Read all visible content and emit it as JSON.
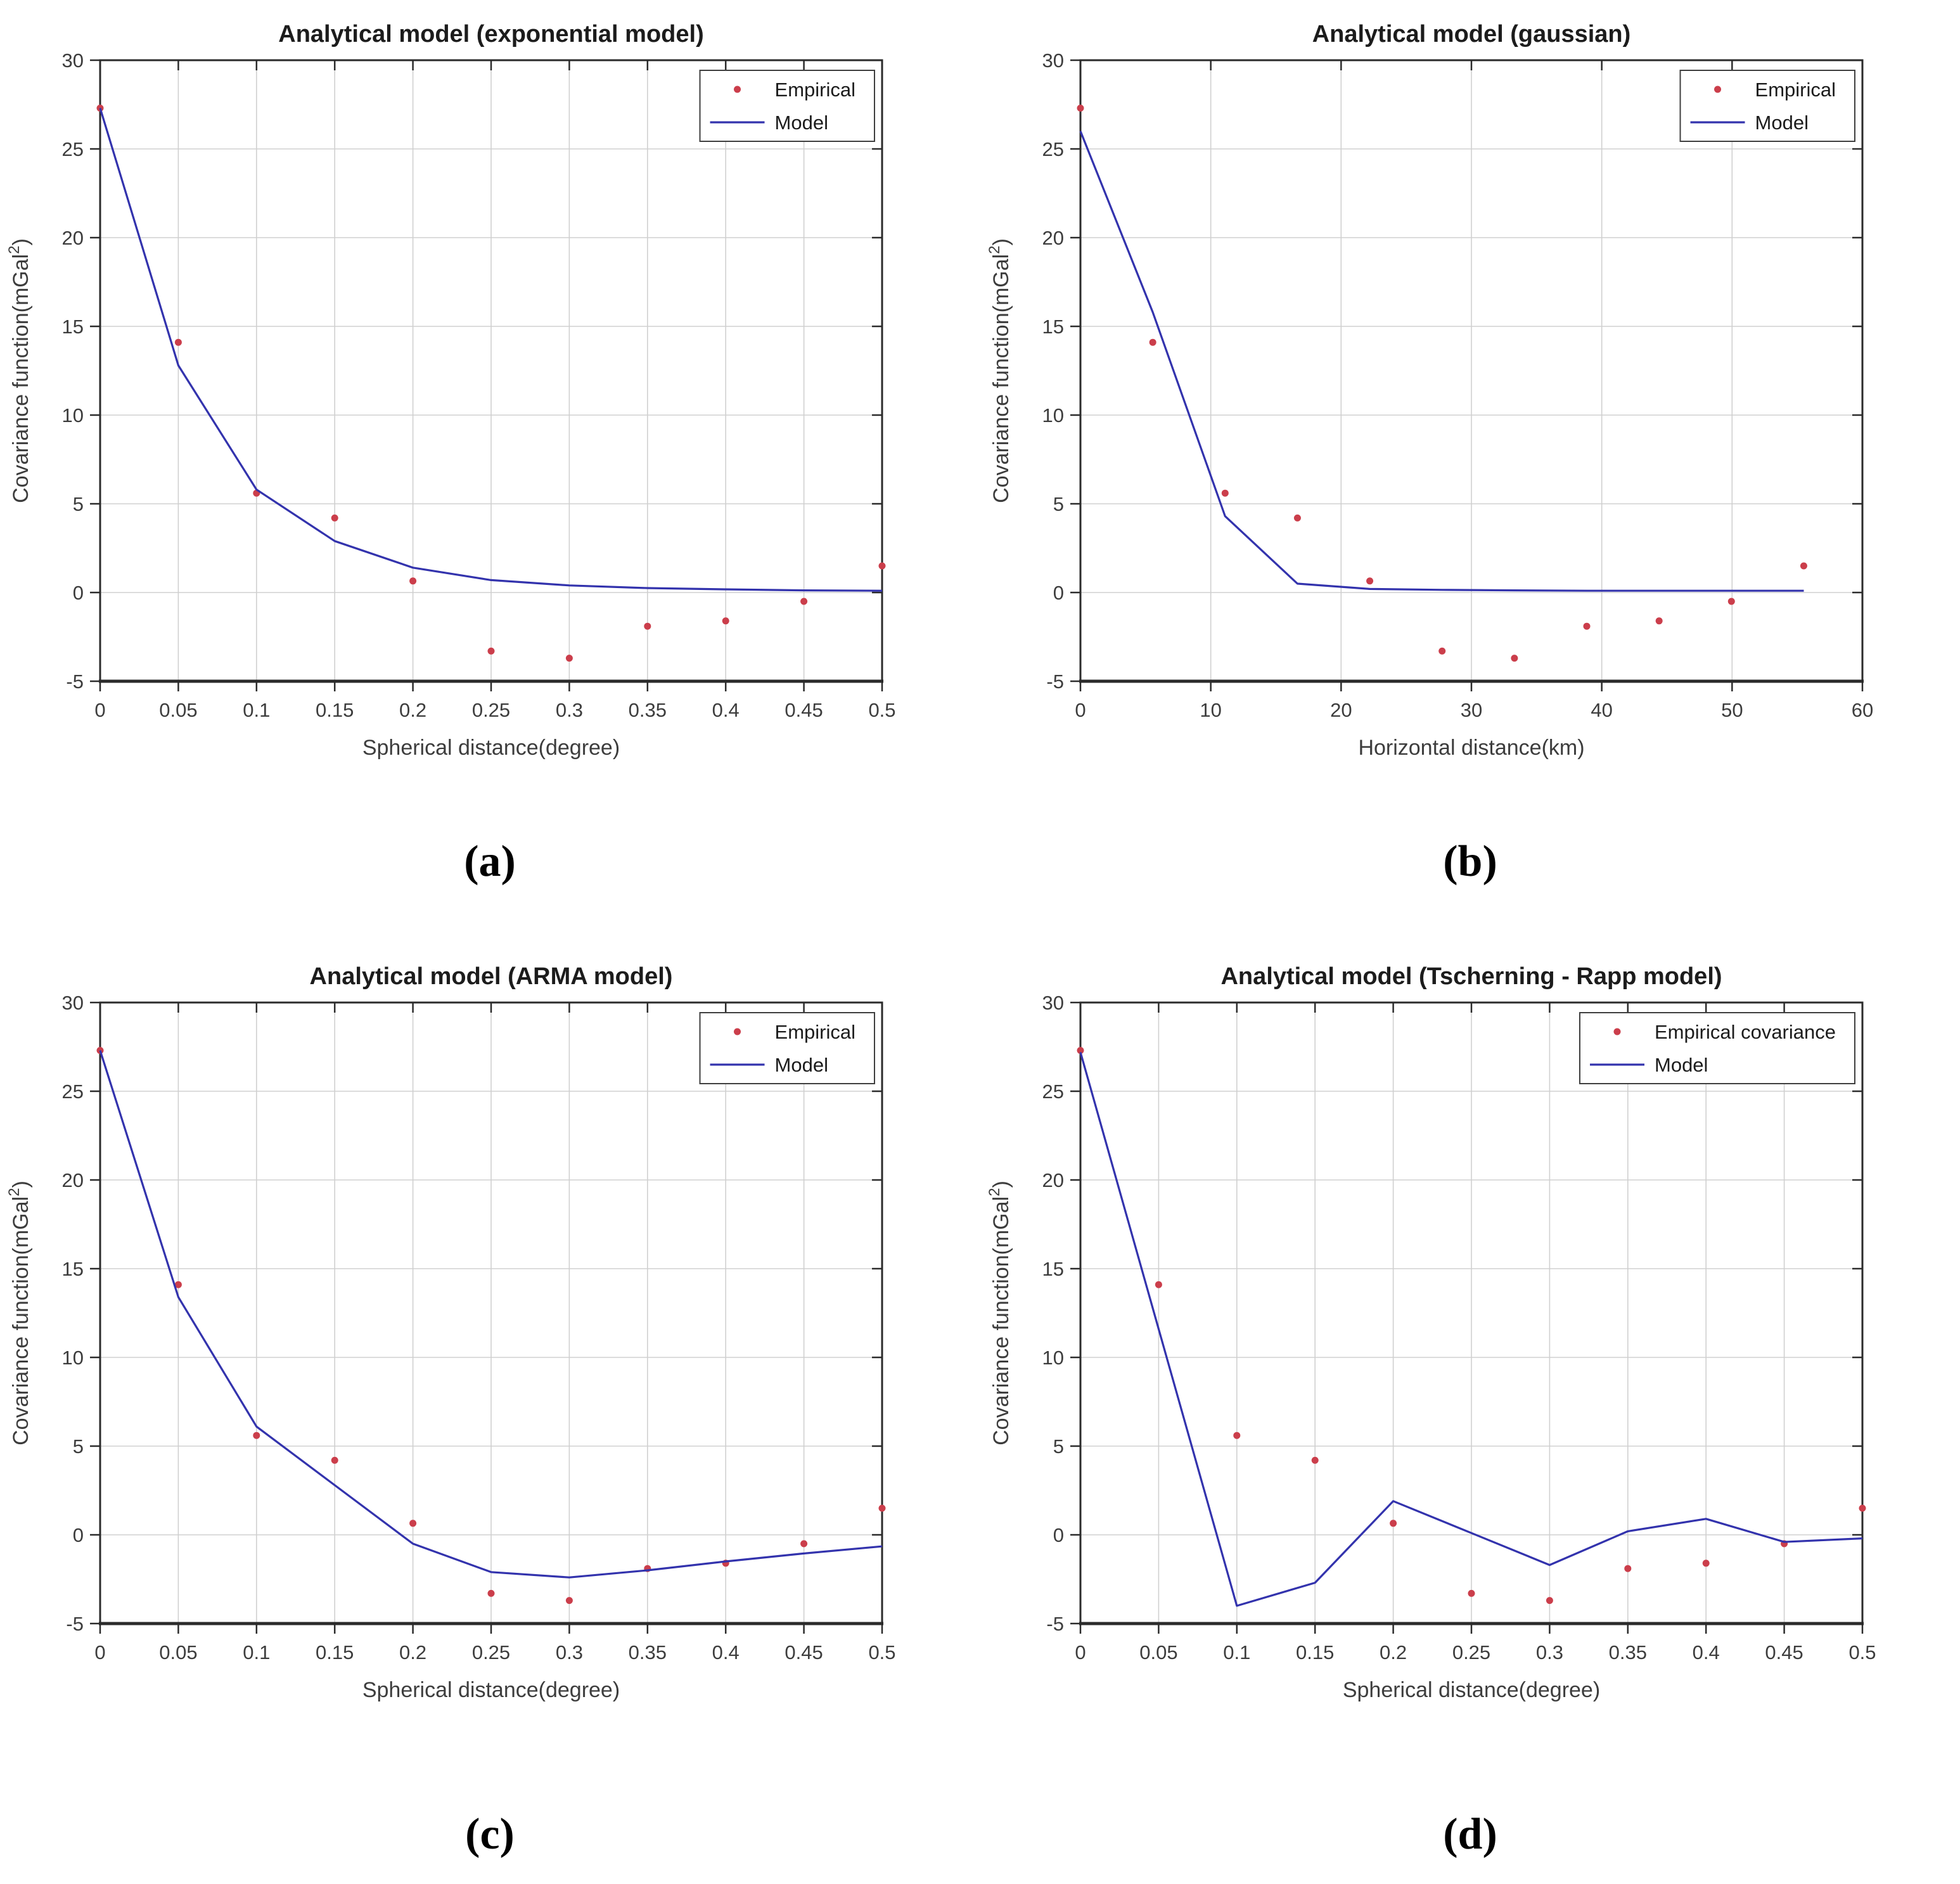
{
  "figure": {
    "background": "#ffffff"
  },
  "colors": {
    "empirical": "#cb3e4b",
    "model": "#3333ad",
    "grid": "#d0d0d0",
    "axis": "#2b2b2b",
    "tick_label": "#3d3d3d",
    "title": "#1c1c1c",
    "legend_border": "#3f3f3f",
    "background": "#ffffff"
  },
  "captions": {
    "a": "(a)",
    "b": "(b)",
    "c": "(c)",
    "d": "(d)"
  },
  "chart_data": [
    {
      "id": "a",
      "type": "line",
      "title": "Analytical model (exponential model)",
      "xlabel": "Spherical distance(degree)",
      "ylabel": "Covariance function(mGal²)",
      "xlim": [
        0,
        0.5
      ],
      "ylim": [
        -5,
        30
      ],
      "xticks": [
        0,
        0.05,
        0.1,
        0.15,
        0.2,
        0.25,
        0.3,
        0.35,
        0.4,
        0.45,
        0.5
      ],
      "xtick_labels": [
        "0",
        "0.05",
        "0.1",
        "0.15",
        "0.2",
        "0.25",
        "0.3",
        "0.35",
        "0.4",
        "0.45",
        "0.5"
      ],
      "yticks": [
        -5,
        0,
        5,
        10,
        15,
        20,
        25,
        30
      ],
      "ytick_labels": [
        "-5",
        "0",
        "5",
        "10",
        "15",
        "20",
        "25",
        "30"
      ],
      "grid": true,
      "legend": {
        "position": "top-right",
        "entries": [
          {
            "label": "Empirical",
            "marker": "dot",
            "color": "empirical"
          },
          {
            "label": "Model",
            "marker": "line",
            "color": "model"
          }
        ]
      },
      "series": [
        {
          "name": "Empirical",
          "type": "scatter",
          "color": "empirical",
          "x": [
            0,
            0.05,
            0.1,
            0.15,
            0.2,
            0.25,
            0.3,
            0.35,
            0.4,
            0.45,
            0.5
          ],
          "y": [
            27.3,
            14.1,
            5.6,
            4.2,
            0.65,
            -3.3,
            -3.7,
            -1.9,
            -1.6,
            -0.5,
            1.5
          ]
        },
        {
          "name": "Model",
          "type": "line",
          "color": "model",
          "x": [
            0,
            0.05,
            0.1,
            0.15,
            0.2,
            0.25,
            0.3,
            0.35,
            0.4,
            0.45,
            0.5
          ],
          "y": [
            27.3,
            12.8,
            5.8,
            2.9,
            1.4,
            0.7,
            0.4,
            0.25,
            0.18,
            0.12,
            0.1
          ]
        }
      ]
    },
    {
      "id": "b",
      "type": "line",
      "title": "Analytical model (gaussian)",
      "xlabel": "Horizontal distance(km)",
      "ylabel": "Covariance function(mGal²)",
      "xlim": [
        0,
        60
      ],
      "ylim": [
        -5,
        30
      ],
      "xticks": [
        0,
        10,
        20,
        30,
        40,
        50,
        60
      ],
      "xtick_labels": [
        "0",
        "10",
        "20",
        "30",
        "40",
        "50",
        "60"
      ],
      "yticks": [
        -5,
        0,
        5,
        10,
        15,
        20,
        25,
        30
      ],
      "ytick_labels": [
        "-5",
        "0",
        "5",
        "10",
        "15",
        "20",
        "25",
        "30"
      ],
      "grid": true,
      "legend": {
        "position": "top-right",
        "entries": [
          {
            "label": "Empirical",
            "marker": "dot",
            "color": "empirical"
          },
          {
            "label": "Model",
            "marker": "line",
            "color": "model"
          }
        ]
      },
      "series": [
        {
          "name": "Empirical",
          "type": "scatter",
          "color": "empirical",
          "x": [
            0,
            5.55,
            11.1,
            16.65,
            22.2,
            27.75,
            33.3,
            38.85,
            44.4,
            49.95,
            55.5
          ],
          "y": [
            27.3,
            14.1,
            5.6,
            4.2,
            0.65,
            -3.3,
            -3.7,
            -1.9,
            -1.6,
            -0.5,
            1.5
          ]
        },
        {
          "name": "Model",
          "type": "line",
          "color": "model",
          "x": [
            0,
            5.55,
            11.1,
            16.65,
            22.2,
            27.75,
            33.3,
            38.85,
            44.4,
            49.95,
            55.5
          ],
          "y": [
            26.0,
            15.8,
            4.3,
            0.5,
            0.2,
            0.15,
            0.12,
            0.1,
            0.1,
            0.1,
            0.1
          ]
        }
      ]
    },
    {
      "id": "c",
      "type": "line",
      "title": "Analytical model (ARMA model)",
      "xlabel": "Spherical distance(degree)",
      "ylabel": "Covariance function(mGal²)",
      "xlim": [
        0,
        0.5
      ],
      "ylim": [
        -5,
        30
      ],
      "xticks": [
        0,
        0.05,
        0.1,
        0.15,
        0.2,
        0.25,
        0.3,
        0.35,
        0.4,
        0.45,
        0.5
      ],
      "xtick_labels": [
        "0",
        "0.05",
        "0.1",
        "0.15",
        "0.2",
        "0.25",
        "0.3",
        "0.35",
        "0.4",
        "0.45",
        "0.5"
      ],
      "yticks": [
        -5,
        0,
        5,
        10,
        15,
        20,
        25,
        30
      ],
      "ytick_labels": [
        "-5",
        "0",
        "5",
        "10",
        "15",
        "20",
        "25",
        "30"
      ],
      "grid": true,
      "legend": {
        "position": "top-right",
        "entries": [
          {
            "label": "Empirical",
            "marker": "dot",
            "color": "empirical"
          },
          {
            "label": "Model",
            "marker": "line",
            "color": "model"
          }
        ]
      },
      "series": [
        {
          "name": "Empirical",
          "type": "scatter",
          "color": "empirical",
          "x": [
            0,
            0.05,
            0.1,
            0.15,
            0.2,
            0.25,
            0.3,
            0.35,
            0.4,
            0.45,
            0.5
          ],
          "y": [
            27.3,
            14.1,
            5.6,
            4.2,
            0.65,
            -3.3,
            -3.7,
            -1.9,
            -1.6,
            -0.5,
            1.5
          ]
        },
        {
          "name": "Model",
          "type": "line",
          "color": "model",
          "x": [
            0,
            0.05,
            0.1,
            0.15,
            0.2,
            0.25,
            0.3,
            0.35,
            0.4,
            0.45,
            0.5
          ],
          "y": [
            27.3,
            13.4,
            6.1,
            2.8,
            -0.5,
            -2.1,
            -2.4,
            -2.0,
            -1.5,
            -1.05,
            -0.65
          ]
        }
      ]
    },
    {
      "id": "d",
      "type": "line",
      "title": "Analytical model (Tscherning - Rapp model)",
      "xlabel": "Spherical distance(degree)",
      "ylabel": "Covariance function(mGal²)",
      "xlim": [
        0,
        0.5
      ],
      "ylim": [
        -5,
        30
      ],
      "xticks": [
        0,
        0.05,
        0.1,
        0.15,
        0.2,
        0.25,
        0.3,
        0.35,
        0.4,
        0.45,
        0.5
      ],
      "xtick_labels": [
        "0",
        "0.05",
        "0.1",
        "0.15",
        "0.2",
        "0.25",
        "0.3",
        "0.35",
        "0.4",
        "0.45",
        "0.5"
      ],
      "yticks": [
        -5,
        0,
        5,
        10,
        15,
        20,
        25,
        30
      ],
      "ytick_labels": [
        "-5",
        "0",
        "5",
        "10",
        "15",
        "20",
        "25",
        "30"
      ],
      "grid": true,
      "legend": {
        "position": "top-right",
        "entries": [
          {
            "label": "Empirical covariance",
            "marker": "dot",
            "color": "empirical"
          },
          {
            "label": "Model",
            "marker": "line",
            "color": "model"
          }
        ]
      },
      "series": [
        {
          "name": "Empirical covariance",
          "type": "scatter",
          "color": "empirical",
          "x": [
            0,
            0.05,
            0.1,
            0.15,
            0.2,
            0.25,
            0.3,
            0.35,
            0.4,
            0.45,
            0.5
          ],
          "y": [
            27.3,
            14.1,
            5.6,
            4.2,
            0.65,
            -3.3,
            -3.7,
            -1.9,
            -1.6,
            -0.5,
            1.5
          ]
        },
        {
          "name": "Model",
          "type": "line",
          "color": "model",
          "x": [
            0,
            0.05,
            0.1,
            0.15,
            0.2,
            0.25,
            0.3,
            0.35,
            0.4,
            0.45,
            0.5
          ],
          "y": [
            27.2,
            11.6,
            -4.0,
            -2.7,
            1.9,
            0.1,
            -1.7,
            0.2,
            0.9,
            -0.4,
            -0.2
          ]
        }
      ]
    }
  ]
}
